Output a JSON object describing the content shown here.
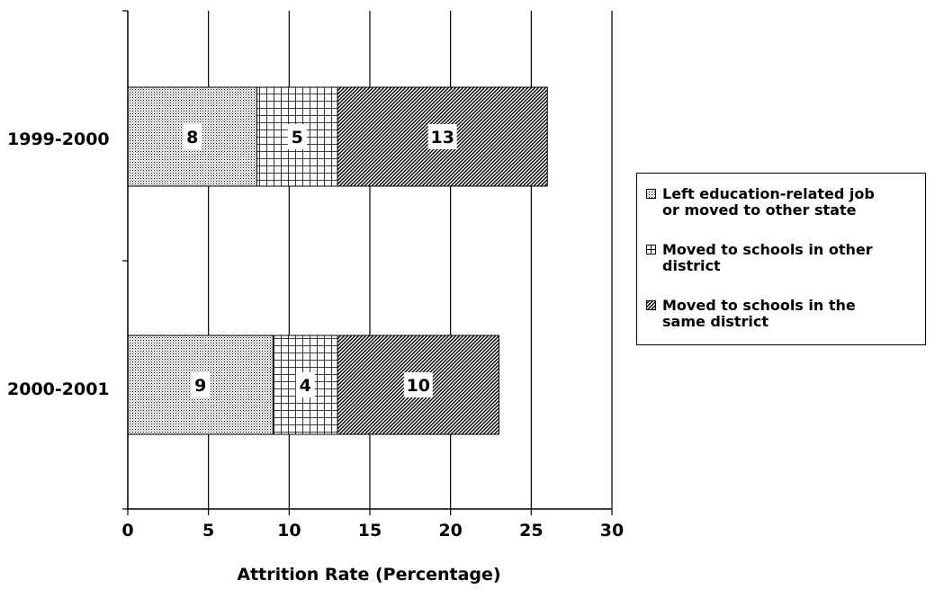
{
  "chart_data": {
    "type": "bar",
    "orientation": "horizontal",
    "stacked": true,
    "categories": [
      "1999-2000",
      "2000-2001"
    ],
    "series": [
      {
        "name": "Left education-related job or moved to other state",
        "values": [
          8,
          9
        ],
        "pattern": "dots"
      },
      {
        "name": "Moved to schools in other district",
        "values": [
          5,
          4
        ],
        "pattern": "grid"
      },
      {
        "name": "Moved to schools in the same district",
        "values": [
          13,
          10
        ],
        "pattern": "diagonal"
      }
    ],
    "data_labels": [
      [
        "8",
        "5",
        "13"
      ],
      [
        "9",
        "4",
        "10"
      ]
    ],
    "xlabel": "Attrition Rate (Percentage)",
    "ylabel": "",
    "xlim": [
      0,
      30
    ],
    "xticks": [
      "0",
      "5",
      "10",
      "15",
      "20",
      "25",
      "30"
    ],
    "grid": true,
    "legend_position": "right",
    "legend": [
      {
        "line1": "Left education-related job",
        "line2": "or moved to other state"
      },
      {
        "line1": "Moved to schools in other",
        "line2": "district"
      },
      {
        "line1": "Moved to schools in the",
        "line2": "same district"
      }
    ]
  }
}
